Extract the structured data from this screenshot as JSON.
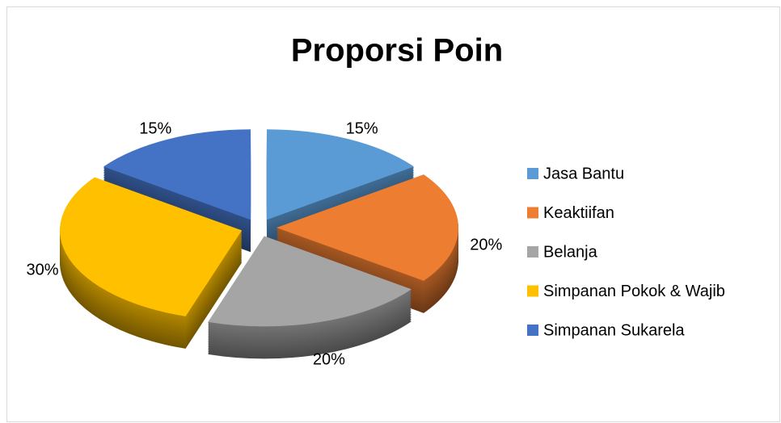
{
  "chart_data": {
    "type": "pie",
    "title": "Proporsi Poin",
    "categories": [
      "Jasa Bantu",
      "Keaktiifan",
      "Belanja",
      "Simpanan Pokok & Wajib",
      "Simpanan Sukarela"
    ],
    "values": [
      15,
      20,
      20,
      30,
      15
    ],
    "value_labels": [
      "15%",
      "20%",
      "20%",
      "30%",
      "15%"
    ],
    "colors": [
      "#5b9bd5",
      "#ed7d31",
      "#a5a5a5",
      "#ffc000",
      "#4472c4"
    ],
    "legend": "right"
  }
}
